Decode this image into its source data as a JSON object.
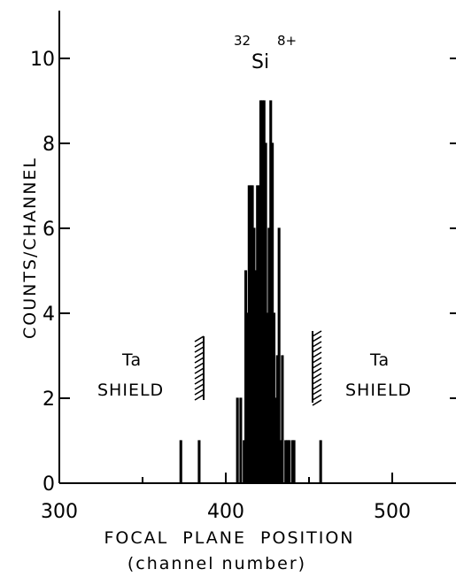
{
  "chart_data": {
    "type": "bar",
    "title_parts": {
      "mass": "32",
      "element": "Si",
      "charge": "8+"
    },
    "xlabel": "FOCAL  PLANE  POSITION",
    "xlabel_sub": "(channel number)",
    "ylabel": "COUNTS/CHANNEL",
    "xlim": [
      300,
      540
    ],
    "ylim": [
      0,
      11
    ],
    "xticks": [
      300,
      400,
      500
    ],
    "yticks": [
      0,
      2,
      4,
      6,
      8,
      10
    ],
    "grid": false,
    "bars": [
      {
        "x": 373,
        "y": 1
      },
      {
        "x": 384,
        "y": 1
      },
      {
        "x": 407,
        "y": 2
      },
      {
        "x": 409,
        "y": 2
      },
      {
        "x": 411,
        "y": 1
      },
      {
        "x": 412,
        "y": 5
      },
      {
        "x": 413,
        "y": 4
      },
      {
        "x": 414,
        "y": 7
      },
      {
        "x": 415,
        "y": 7
      },
      {
        "x": 416,
        "y": 7
      },
      {
        "x": 417,
        "y": 6
      },
      {
        "x": 418,
        "y": 5
      },
      {
        "x": 419,
        "y": 7
      },
      {
        "x": 420,
        "y": 7
      },
      {
        "x": 421,
        "y": 9
      },
      {
        "x": 422,
        "y": 9
      },
      {
        "x": 423,
        "y": 9
      },
      {
        "x": 424,
        "y": 8
      },
      {
        "x": 425,
        "y": 4
      },
      {
        "x": 426,
        "y": 6
      },
      {
        "x": 427,
        "y": 9
      },
      {
        "x": 428,
        "y": 8
      },
      {
        "x": 429,
        "y": 4
      },
      {
        "x": 430,
        "y": 2
      },
      {
        "x": 431,
        "y": 3
      },
      {
        "x": 432,
        "y": 6
      },
      {
        "x": 433,
        "y": 1
      },
      {
        "x": 434,
        "y": 3
      },
      {
        "x": 436,
        "y": 1
      },
      {
        "x": 437,
        "y": 1
      },
      {
        "x": 438,
        "y": 1
      },
      {
        "x": 440,
        "y": 1
      },
      {
        "x": 441,
        "y": 1
      },
      {
        "x": 457,
        "y": 1
      }
    ],
    "annotations": {
      "left_shield": {
        "line1": "Ta",
        "line2": "SHIELD"
      },
      "right_shield": {
        "line1": "Ta",
        "line2": "SHIELD"
      }
    }
  }
}
